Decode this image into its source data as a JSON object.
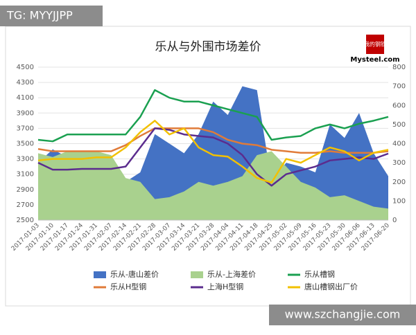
{
  "watermarks": {
    "top_left": "TG: MYYJJPP",
    "bottom_right": "www.szchangjie.com",
    "logo_top": "我的钢铁",
    "logo_bottom": "Mysteel.com"
  },
  "chart_data": {
    "type": "line",
    "title": "乐从与外围市场差价",
    "categories": [
      "2017-01-03",
      "2017-01-10",
      "2017-01-17",
      "2017-01-24",
      "2017-01-31",
      "2017-02-07",
      "2017-02-14",
      "2017-02-21",
      "2017-02-28",
      "2017-03-07",
      "2017-03-14",
      "2017-03-21",
      "2017-03-28",
      "2017-04-04",
      "2017-04-11",
      "2017-04-18",
      "2017-04-25",
      "2017-05-02",
      "2017-05-09",
      "2017-05-16",
      "2017-05-23",
      "2017-05-30",
      "2017-06-06",
      "2017-06-13",
      "2017-06-20"
    ],
    "ylim": [
      2500,
      4500
    ],
    "yticks": [
      2500,
      2700,
      2900,
      3100,
      3300,
      3500,
      3700,
      3900,
      4100,
      4300,
      4500
    ],
    "y2lim": [
      0,
      800
    ],
    "y2ticks": [
      0,
      100,
      200,
      300,
      400,
      500,
      600,
      700,
      800
    ],
    "grid": true,
    "series": [
      {
        "name": "乐从-唐山差价",
        "type": "area",
        "axis": "y2",
        "color": "#4472c4",
        "values": [
          300,
          370,
          330,
          320,
          300,
          280,
          200,
          250,
          450,
          400,
          350,
          450,
          620,
          550,
          700,
          680,
          200,
          300,
          280,
          250,
          500,
          430,
          560,
          350,
          230
        ]
      },
      {
        "name": "乐从-上海差价",
        "type": "area",
        "axis": "y2",
        "color": "#a9d18e",
        "values": [
          350,
          330,
          360,
          360,
          360,
          340,
          220,
          200,
          110,
          120,
          150,
          200,
          180,
          200,
          230,
          340,
          360,
          280,
          200,
          170,
          120,
          130,
          100,
          70,
          60
        ]
      },
      {
        "name": "乐从槽钢",
        "type": "line",
        "color": "#1aa050",
        "values": [
          3550,
          3530,
          3620,
          3620,
          3620,
          3620,
          3620,
          3850,
          4200,
          4100,
          4050,
          4050,
          4000,
          3950,
          3900,
          3850,
          3550,
          3580,
          3600,
          3700,
          3750,
          3700,
          3760,
          3800,
          3850
        ]
      },
      {
        "name": "乐从H型钢",
        "type": "line",
        "color": "#e07b39",
        "values": [
          3430,
          3400,
          3400,
          3400,
          3400,
          3400,
          3480,
          3600,
          3700,
          3700,
          3700,
          3700,
          3650,
          3550,
          3500,
          3480,
          3420,
          3400,
          3380,
          3380,
          3400,
          3380,
          3380,
          3380,
          3400
        ]
      },
      {
        "name": "上海H型钢",
        "type": "line",
        "color": "#5b2c8e",
        "values": [
          3250,
          3160,
          3160,
          3170,
          3170,
          3170,
          3200,
          3450,
          3700,
          3680,
          3620,
          3600,
          3580,
          3500,
          3350,
          3100,
          2950,
          3100,
          3150,
          3200,
          3280,
          3300,
          3320,
          3300,
          3370
        ]
      },
      {
        "name": "唐山槽钢出厂价",
        "type": "line",
        "color": "#f2c000",
        "values": [
          3280,
          3300,
          3300,
          3300,
          3320,
          3320,
          3450,
          3650,
          3800,
          3620,
          3700,
          3450,
          3350,
          3330,
          3200,
          3050,
          2990,
          3300,
          3250,
          3350,
          3450,
          3400,
          3280,
          3380,
          3420
        ]
      }
    ]
  }
}
